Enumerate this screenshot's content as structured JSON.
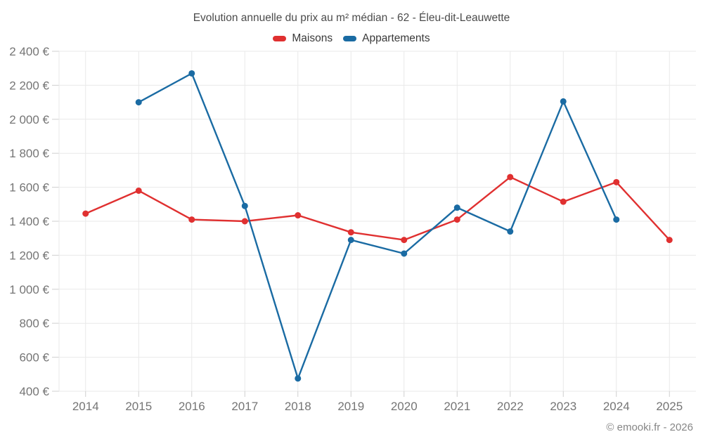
{
  "chart_data": {
    "type": "line",
    "title": "Evolution annuelle du prix au m² médian - 62 - Éleu-dit-Leauwette",
    "x": [
      2014,
      2015,
      2016,
      2017,
      2018,
      2019,
      2020,
      2021,
      2022,
      2023,
      2024,
      2025
    ],
    "series": [
      {
        "name": "Maisons",
        "color": "#e03030",
        "values": [
          1445,
          1580,
          1410,
          1400,
          1435,
          1335,
          1290,
          1410,
          1660,
          1515,
          1630,
          1290
        ]
      },
      {
        "name": "Appartements",
        "color": "#1a6ba3",
        "values": [
          null,
          2100,
          2270,
          1490,
          475,
          1290,
          1210,
          1480,
          1340,
          2105,
          1410,
          null
        ]
      }
    ],
    "ylim": [
      400,
      2400
    ],
    "ytick_step": 200,
    "ytick_suffix": " €",
    "grid": true,
    "legend_position": "top",
    "marker": "circle",
    "background": "#ffffff",
    "grid_color": "#e9e9e9",
    "tick_color": "#cfcfcf",
    "axis_text_color": "#757575"
  },
  "footer": "© emooki.fr - 2026"
}
